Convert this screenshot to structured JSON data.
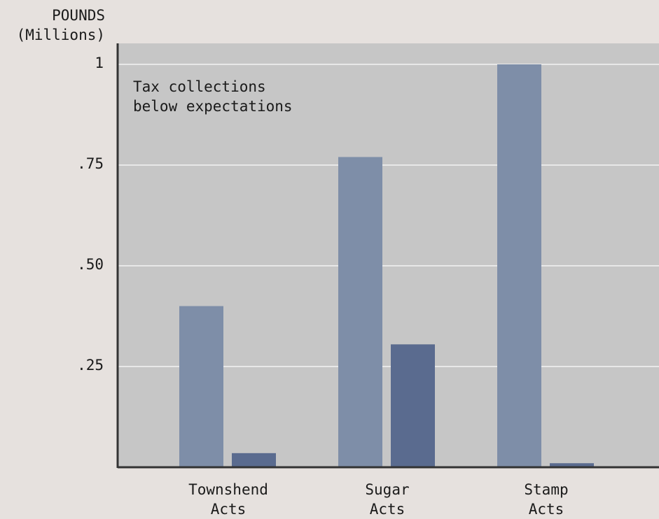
{
  "chart_data": {
    "type": "bar",
    "ylabel_line1": "POUNDS",
    "ylabel_line2": "(Millions)",
    "annotation_line1": "Tax collections",
    "annotation_line2": "below expectations",
    "ylim": [
      0,
      1.05
    ],
    "yticks": [
      {
        "value": 0.25,
        "label": ".25"
      },
      {
        "value": 0.5,
        "label": ".50"
      },
      {
        "value": 0.75,
        "label": ".75"
      },
      {
        "value": 1,
        "label": "1"
      }
    ],
    "categories": [
      {
        "line1": "Townshend",
        "line2": "Acts"
      },
      {
        "line1": "Sugar",
        "line2": "Acts"
      },
      {
        "line1": "Stamp",
        "line2": "Acts"
      }
    ],
    "series": [
      {
        "color": "#7e8ea8",
        "values": [
          0.4,
          0.77,
          1.0
        ]
      },
      {
        "color": "#5a6b8f",
        "values": [
          0.035,
          0.305,
          0.01
        ]
      }
    ],
    "grid": true
  }
}
